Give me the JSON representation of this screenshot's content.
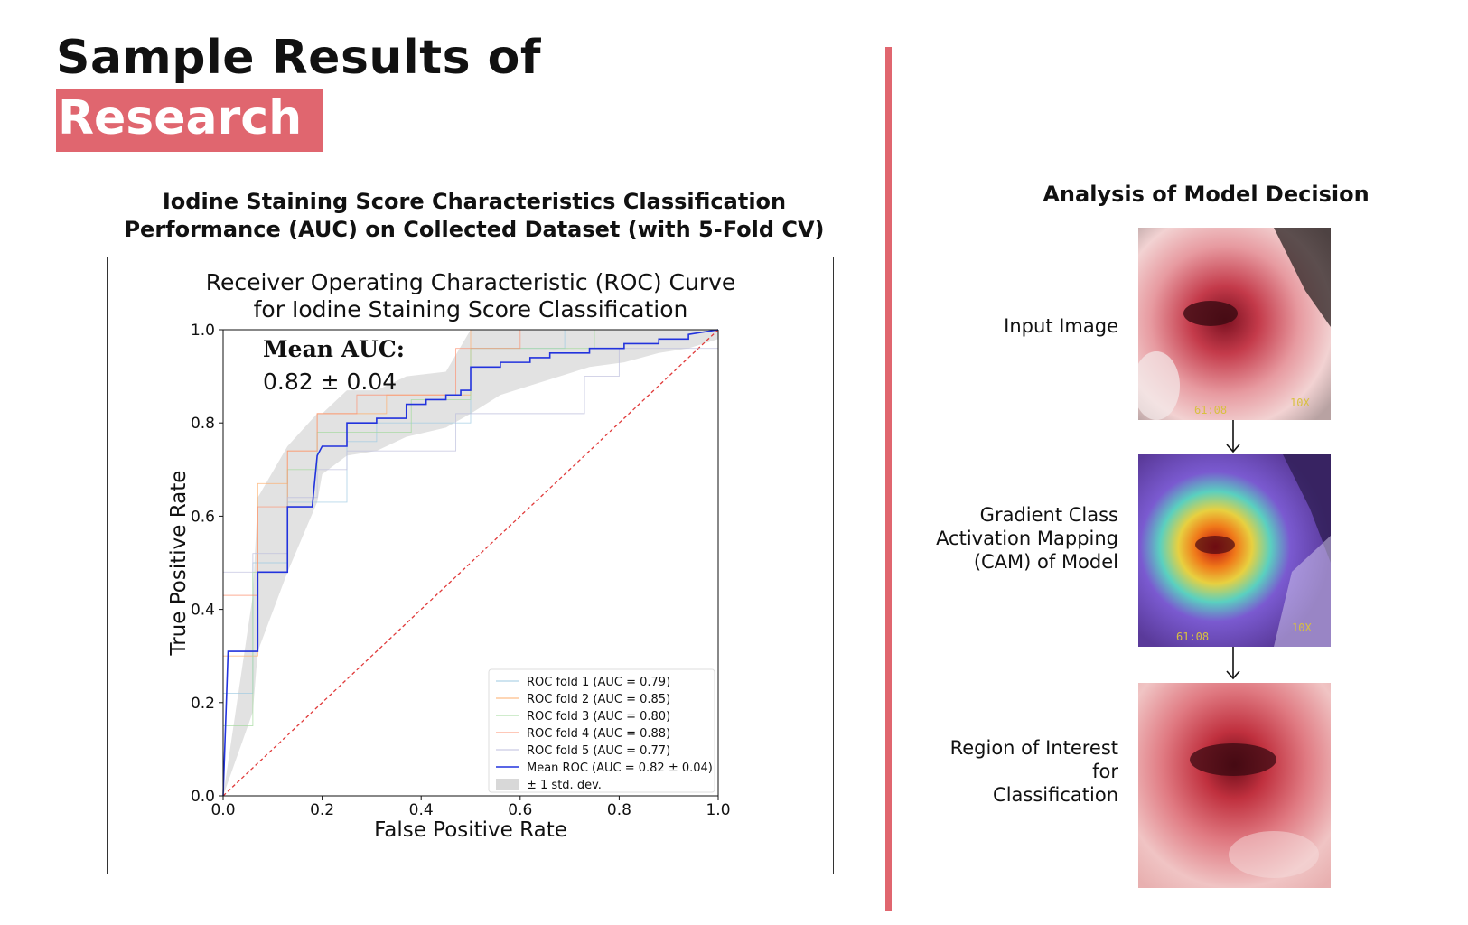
{
  "heading": {
    "line1": "Sample Results of",
    "line2": "Research"
  },
  "left_panel": {
    "title_line1": "Iodine Staining Score Characteristics Classification",
    "title_line2": "Performance (AUC) on Collected Dataset (with 5-Fold CV)"
  },
  "right_panel": {
    "title": "Analysis of Model Decision",
    "steps": [
      {
        "label_lines": [
          "Input Image"
        ],
        "overlay": [
          "61:08",
          "10X"
        ]
      },
      {
        "label_lines": [
          "Gradient Class",
          "Activation Mapping",
          "(CAM) of Model"
        ],
        "overlay": [
          "61:08",
          "10X"
        ]
      },
      {
        "label_lines": [
          "Region of Interest",
          "for",
          "Classification"
        ],
        "overlay": []
      }
    ]
  },
  "colors": {
    "accent": "#e0666f",
    "mean_roc": "#2233dd",
    "chance": "#e03a3a",
    "std_band": "#d8d8d8"
  },
  "chart_data": {
    "type": "line",
    "title_lines": [
      "Receiver Operating Characteristic (ROC) Curve",
      "for Iodine Staining Score Classification"
    ],
    "xlabel": "False Positive Rate",
    "ylabel": "True Positive Rate",
    "xlim": [
      0.0,
      1.0
    ],
    "ylim": [
      0.0,
      1.0
    ],
    "xticks": [
      "0.0",
      "0.2",
      "0.4",
      "0.6",
      "0.8",
      "1.0"
    ],
    "yticks": [
      "0.0",
      "0.2",
      "0.4",
      "0.6",
      "0.8",
      "1.0"
    ],
    "grid": false,
    "legend_position": "lower-right",
    "annotation": {
      "label": "Mean AUC:",
      "value": "0.82 ± 0.04"
    },
    "series": [
      {
        "name": "ROC fold 1 (AUC = 0.79)",
        "color": "#9ecae1",
        "points": [
          [
            0,
            0
          ],
          [
            0,
            0.22
          ],
          [
            0.06,
            0.22
          ],
          [
            0.06,
            0.5
          ],
          [
            0.13,
            0.5
          ],
          [
            0.13,
            0.63
          ],
          [
            0.25,
            0.63
          ],
          [
            0.25,
            0.76
          ],
          [
            0.31,
            0.76
          ],
          [
            0.31,
            0.8
          ],
          [
            0.5,
            0.8
          ],
          [
            0.5,
            0.96
          ],
          [
            0.69,
            0.96
          ],
          [
            0.69,
            1.0
          ],
          [
            1.0,
            1.0
          ]
        ]
      },
      {
        "name": "ROC fold 2 (AUC = 0.85)",
        "color": "#fdae6b",
        "points": [
          [
            0,
            0
          ],
          [
            0,
            0.3
          ],
          [
            0.07,
            0.3
          ],
          [
            0.07,
            0.67
          ],
          [
            0.13,
            0.67
          ],
          [
            0.13,
            0.74
          ],
          [
            0.19,
            0.74
          ],
          [
            0.19,
            0.82
          ],
          [
            0.33,
            0.82
          ],
          [
            0.33,
            0.86
          ],
          [
            0.5,
            0.86
          ],
          [
            0.5,
            1.0
          ],
          [
            1.0,
            1.0
          ]
        ]
      },
      {
        "name": "ROC fold 3 (AUC = 0.80)",
        "color": "#a1d99b",
        "points": [
          [
            0,
            0
          ],
          [
            0,
            0.15
          ],
          [
            0.06,
            0.15
          ],
          [
            0.06,
            0.48
          ],
          [
            0.13,
            0.48
          ],
          [
            0.13,
            0.7
          ],
          [
            0.19,
            0.7
          ],
          [
            0.19,
            0.78
          ],
          [
            0.38,
            0.78
          ],
          [
            0.38,
            0.85
          ],
          [
            0.5,
            0.85
          ],
          [
            0.5,
            0.96
          ],
          [
            0.75,
            0.96
          ],
          [
            0.75,
            1.0
          ],
          [
            1.0,
            1.0
          ]
        ]
      },
      {
        "name": "ROC fold 4 (AUC = 0.88)",
        "color": "#fc9272",
        "points": [
          [
            0,
            0
          ],
          [
            0,
            0.43
          ],
          [
            0.07,
            0.43
          ],
          [
            0.07,
            0.62
          ],
          [
            0.13,
            0.62
          ],
          [
            0.13,
            0.74
          ],
          [
            0.19,
            0.74
          ],
          [
            0.19,
            0.82
          ],
          [
            0.27,
            0.82
          ],
          [
            0.27,
            0.86
          ],
          [
            0.47,
            0.86
          ],
          [
            0.47,
            0.96
          ],
          [
            0.6,
            0.96
          ],
          [
            0.6,
            1.0
          ],
          [
            1.0,
            1.0
          ]
        ]
      },
      {
        "name": "ROC fold 5 (AUC = 0.77)",
        "color": "#bcbddc",
        "points": [
          [
            0,
            0
          ],
          [
            0,
            0.48
          ],
          [
            0.06,
            0.48
          ],
          [
            0.06,
            0.52
          ],
          [
            0.13,
            0.52
          ],
          [
            0.13,
            0.64
          ],
          [
            0.19,
            0.64
          ],
          [
            0.19,
            0.7
          ],
          [
            0.25,
            0.7
          ],
          [
            0.25,
            0.74
          ],
          [
            0.47,
            0.74
          ],
          [
            0.47,
            0.82
          ],
          [
            0.73,
            0.82
          ],
          [
            0.73,
            0.9
          ],
          [
            0.8,
            0.9
          ],
          [
            0.8,
            0.96
          ],
          [
            1.0,
            0.96
          ],
          [
            1.0,
            1.0
          ]
        ]
      },
      {
        "name": "Mean ROC (AUC = 0.82 ± 0.04)",
        "color": "#2233dd",
        "width": 1.6,
        "points": [
          [
            0,
            0
          ],
          [
            0.01,
            0.31
          ],
          [
            0.07,
            0.31
          ],
          [
            0.07,
            0.48
          ],
          [
            0.13,
            0.48
          ],
          [
            0.13,
            0.62
          ],
          [
            0.18,
            0.62
          ],
          [
            0.19,
            0.73
          ],
          [
            0.2,
            0.75
          ],
          [
            0.25,
            0.75
          ],
          [
            0.25,
            0.8
          ],
          [
            0.31,
            0.8
          ],
          [
            0.31,
            0.81
          ],
          [
            0.37,
            0.81
          ],
          [
            0.37,
            0.84
          ],
          [
            0.41,
            0.84
          ],
          [
            0.41,
            0.85
          ],
          [
            0.45,
            0.85
          ],
          [
            0.45,
            0.86
          ],
          [
            0.48,
            0.86
          ],
          [
            0.48,
            0.87
          ],
          [
            0.5,
            0.87
          ],
          [
            0.5,
            0.92
          ],
          [
            0.56,
            0.92
          ],
          [
            0.56,
            0.93
          ],
          [
            0.62,
            0.93
          ],
          [
            0.62,
            0.94
          ],
          [
            0.66,
            0.94
          ],
          [
            0.66,
            0.95
          ],
          [
            0.74,
            0.95
          ],
          [
            0.74,
            0.96
          ],
          [
            0.81,
            0.96
          ],
          [
            0.81,
            0.97
          ],
          [
            0.88,
            0.97
          ],
          [
            0.88,
            0.98
          ],
          [
            0.94,
            0.98
          ],
          [
            0.94,
            0.99
          ],
          [
            1.0,
            1.0
          ]
        ]
      }
    ],
    "std_band": {
      "name": "± 1 std. dev.",
      "x": [
        0.0,
        0.06,
        0.07,
        0.13,
        0.19,
        0.2,
        0.25,
        0.31,
        0.37,
        0.45,
        0.5,
        0.56,
        0.62,
        0.74,
        0.81,
        0.88,
        0.94,
        1.0
      ],
      "upper": [
        0.0,
        0.43,
        0.64,
        0.75,
        0.82,
        0.82,
        0.87,
        0.87,
        0.9,
        0.91,
        1.0,
        1.0,
        1.0,
        1.0,
        1.0,
        1.0,
        1.0,
        1.0
      ],
      "lower": [
        0.0,
        0.18,
        0.31,
        0.48,
        0.63,
        0.69,
        0.73,
        0.74,
        0.77,
        0.79,
        0.82,
        0.86,
        0.88,
        0.92,
        0.93,
        0.95,
        0.96,
        0.98
      ]
    },
    "chance_line": {
      "points": [
        [
          0,
          0
        ],
        [
          1,
          1
        ]
      ]
    }
  }
}
